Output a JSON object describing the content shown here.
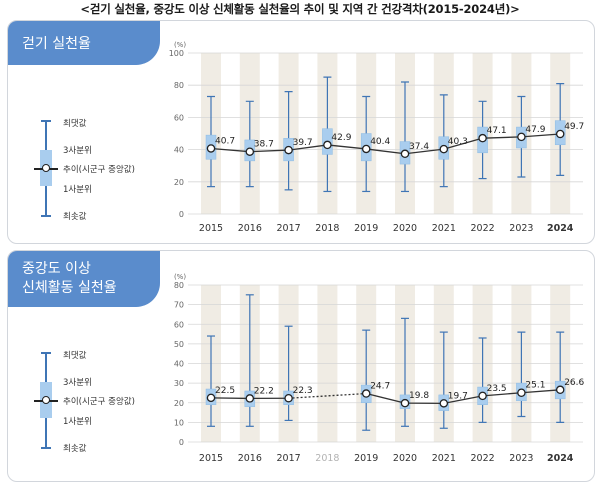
{
  "title": "<걷기 실천율, 중강도 이상 신체활동 실천율의 추이 및 지역 간 건강격차(2015-2024년)>",
  "legend": {
    "max": "최댓값",
    "q3": "3사분위",
    "median": "추이(시군구 중앙값)",
    "q1": "1사분위",
    "min": "최솟값"
  },
  "colors": {
    "tab": "#5a8ccc",
    "whisker": "#3f75b5",
    "box": "#a9cdee",
    "stripe": "#f0ece4",
    "line": "#333333"
  },
  "chart_data": [
    {
      "type": "box",
      "panel_label": "걷기 실천율",
      "unit_label": "(%)",
      "ylim": [
        0,
        100
      ],
      "yticks": [
        0,
        20,
        40,
        60,
        80,
        100
      ],
      "x": [
        "2015",
        "2016",
        "2017",
        "2018",
        "2019",
        "2020",
        "2021",
        "2022",
        "2023",
        "2024"
      ],
      "median": [
        40.7,
        38.7,
        39.7,
        42.9,
        40.4,
        37.4,
        40.3,
        47.1,
        47.9,
        49.7
      ],
      "median_labels": [
        "40.7",
        "38.7",
        "39.7",
        "42.9",
        "40.4",
        "37.4",
        "40.3",
        "47.1",
        "47.9",
        "49.7"
      ],
      "q1": [
        34,
        33,
        33,
        37,
        33,
        31,
        34,
        38,
        41,
        43
      ],
      "q3": [
        49,
        46,
        47,
        53,
        50,
        45,
        48,
        54,
        54,
        58
      ],
      "min": [
        17,
        17,
        15,
        14,
        14,
        14,
        17,
        22,
        23,
        24
      ],
      "max": [
        73,
        70,
        76,
        85,
        73,
        82,
        74,
        70,
        73,
        81
      ],
      "data_present": [
        true,
        true,
        true,
        true,
        true,
        true,
        true,
        true,
        true,
        true
      ],
      "dotted_segments": [],
      "grid": true
    },
    {
      "type": "box",
      "panel_label": [
        "중강도 이상",
        "신체활동 실천율"
      ],
      "unit_label": "(%)",
      "ylim": [
        0,
        80
      ],
      "yticks": [
        0,
        10,
        20,
        30,
        40,
        50,
        60,
        70,
        80
      ],
      "x": [
        "2015",
        "2016",
        "2017",
        "2018",
        "2019",
        "2020",
        "2021",
        "2022",
        "2023",
        "2024"
      ],
      "median": [
        22.5,
        22.2,
        22.3,
        null,
        24.7,
        19.8,
        19.7,
        23.5,
        25.1,
        26.6
      ],
      "median_labels": [
        "22.5",
        "22.2",
        "22.3",
        "",
        "24.7",
        "19.8",
        "19.7",
        "23.5",
        "25.1",
        "26.6"
      ],
      "q1": [
        19,
        18,
        19,
        null,
        20,
        17,
        16,
        19,
        21,
        22
      ],
      "q3": [
        27,
        26,
        26,
        null,
        29,
        24,
        24,
        28,
        30,
        31
      ],
      "min": [
        8,
        8,
        11,
        null,
        6,
        8,
        7,
        10,
        13,
        10
      ],
      "max": [
        54,
        75,
        59,
        null,
        57,
        63,
        56,
        53,
        56,
        56
      ],
      "data_present": [
        true,
        true,
        true,
        false,
        true,
        true,
        true,
        true,
        true,
        true
      ],
      "dotted_segments": [
        [
          2,
          4
        ]
      ],
      "grid": true
    }
  ]
}
